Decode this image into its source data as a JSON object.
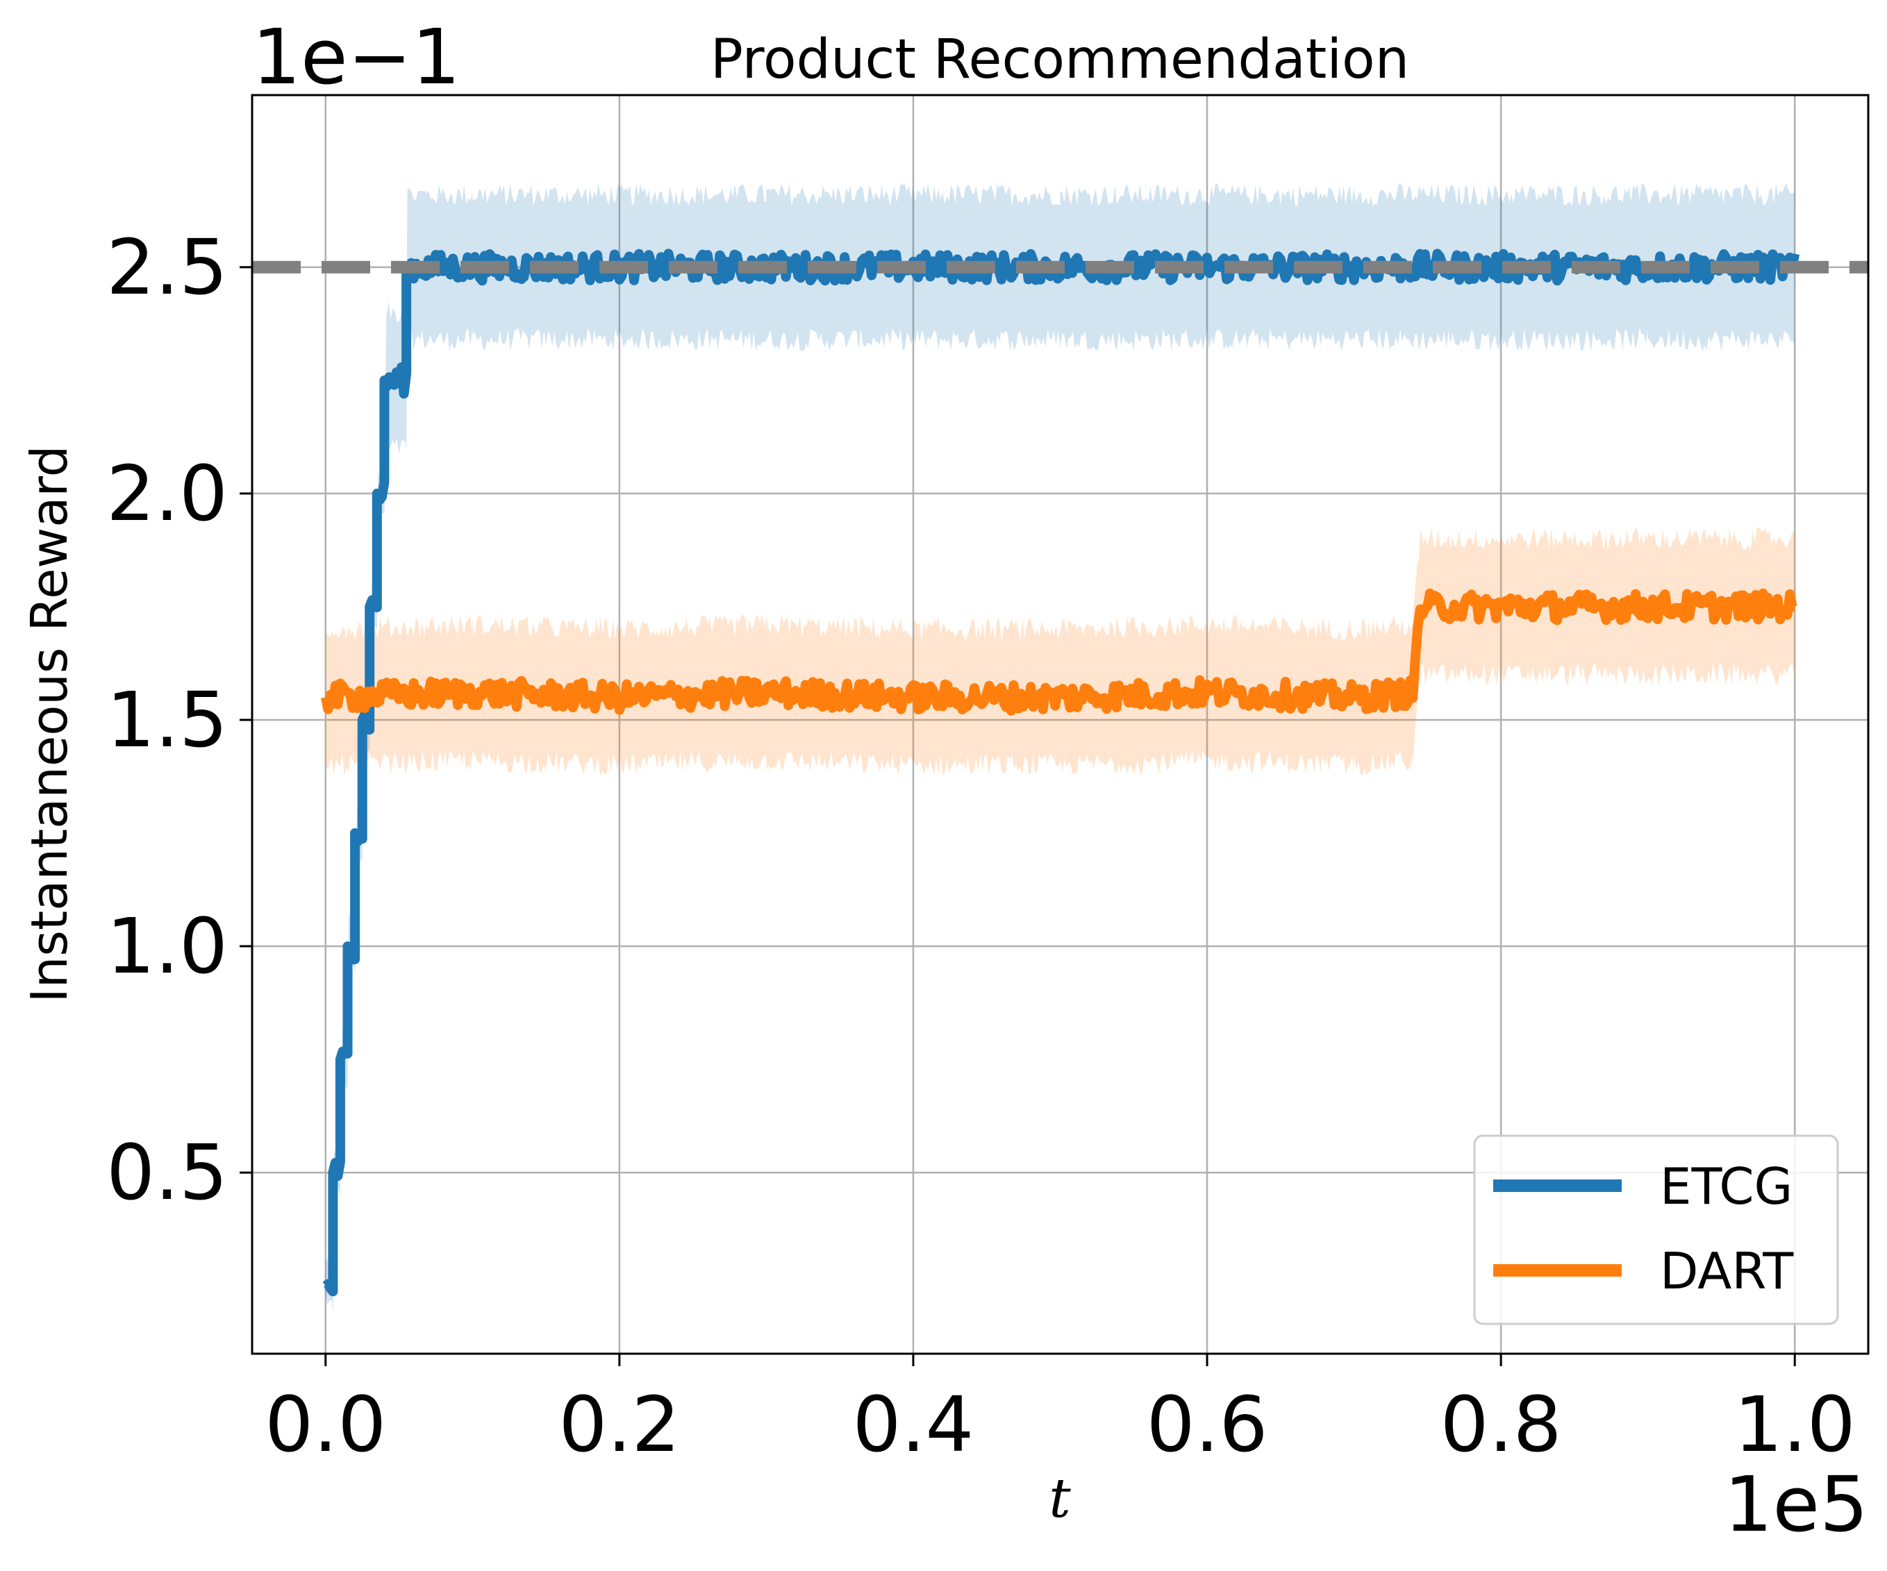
{
  "chart_data": {
    "type": "line",
    "title": "Product Recommendation",
    "xlabel": "t",
    "ylabel": "Instantaneous Reward",
    "x_multiplier": "1e5",
    "y_multiplier": "1e−1",
    "xlim": [
      -0.05,
      1.05
    ],
    "ylim": [
      0.1,
      2.88
    ],
    "x_ticks": [
      0.0,
      0.2,
      0.4,
      0.6,
      0.8,
      1.0
    ],
    "x_tick_labels": [
      "0.0",
      "0.2",
      "0.4",
      "0.6",
      "0.8",
      "1.0"
    ],
    "y_ticks": [
      0.5,
      1.0,
      1.5,
      2.0,
      2.5
    ],
    "y_tick_labels": [
      "0.5",
      "1.0",
      "1.5",
      "2.0",
      "2.5"
    ],
    "grid": true,
    "legend_position": "lower right",
    "reference_line": {
      "y": 2.5,
      "style": "dashed",
      "color": "#808080"
    },
    "series": [
      {
        "name": "ETCG",
        "color": "#1f77b4",
        "band_color": "#1f77b4",
        "x": [
          0.0,
          0.005,
          0.005,
          0.01,
          0.01,
          0.015,
          0.015,
          0.02,
          0.02,
          0.025,
          0.025,
          0.03,
          0.03,
          0.035,
          0.035,
          0.04,
          0.04,
          0.055,
          0.055,
          0.1,
          0.2,
          0.3,
          0.4,
          0.5,
          0.6,
          0.7,
          0.8,
          0.9,
          1.0
        ],
        "y": [
          0.25,
          0.25,
          0.5,
          0.5,
          0.75,
          0.75,
          1.0,
          1.0,
          1.25,
          1.25,
          1.5,
          1.5,
          1.75,
          1.75,
          2.0,
          2.0,
          2.25,
          2.25,
          2.5,
          2.5,
          2.5,
          2.5,
          2.5,
          2.5,
          2.5,
          2.5,
          2.5,
          2.5,
          2.5
        ],
        "band_halfwidth": [
          0.05,
          0.05,
          0.05,
          0.05,
          0.05,
          0.05,
          0.05,
          0.05,
          0.05,
          0.05,
          0.05,
          0.05,
          0.05,
          0.05,
          0.05,
          0.05,
          0.15,
          0.15,
          0.16,
          0.16,
          0.16,
          0.16,
          0.16,
          0.16,
          0.16,
          0.16,
          0.16,
          0.16,
          0.16
        ]
      },
      {
        "name": "DART",
        "color": "#ff7f0e",
        "band_color": "#ff7f0e",
        "x": [
          0.0,
          0.1,
          0.2,
          0.3,
          0.4,
          0.5,
          0.6,
          0.7,
          0.74,
          0.745,
          0.8,
          0.9,
          1.0
        ],
        "y": [
          1.55,
          1.56,
          1.55,
          1.56,
          1.55,
          1.55,
          1.56,
          1.55,
          1.56,
          1.75,
          1.75,
          1.75,
          1.75
        ],
        "band_halfwidth": [
          0.15,
          0.15,
          0.15,
          0.15,
          0.15,
          0.15,
          0.15,
          0.15,
          0.15,
          0.15,
          0.15,
          0.15,
          0.15
        ]
      }
    ]
  }
}
